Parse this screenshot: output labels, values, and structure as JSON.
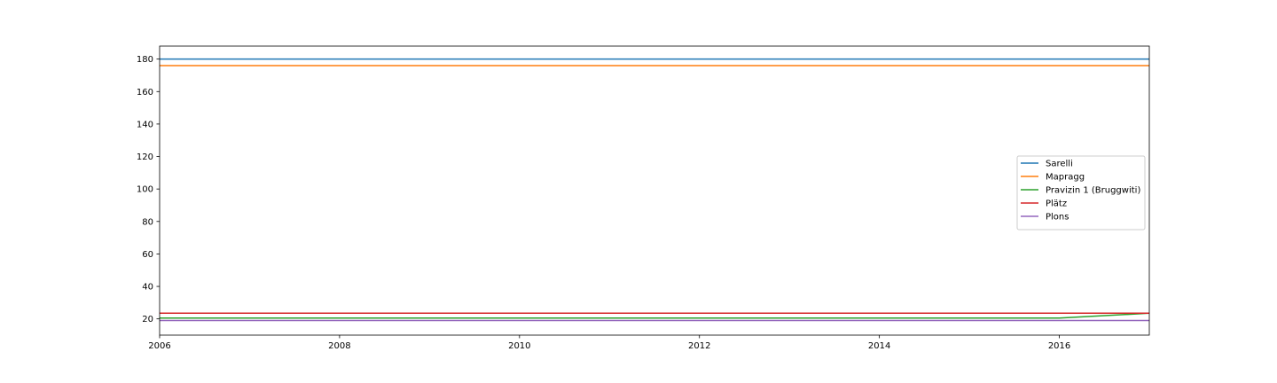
{
  "chart_data": {
    "type": "line",
    "title": "",
    "xlabel": "",
    "ylabel": "",
    "xlim": [
      2006,
      2017
    ],
    "ylim": [
      10,
      188
    ],
    "x_ticks": [
      2006,
      2008,
      2010,
      2012,
      2014,
      2016
    ],
    "y_ticks": [
      20,
      40,
      60,
      80,
      100,
      120,
      140,
      160,
      180
    ],
    "grid": false,
    "legend_position": "center-right",
    "series": [
      {
        "name": "Sarelli",
        "color": "#1f77b4",
        "points": [
          [
            2006,
            180
          ],
          [
            2017,
            180
          ]
        ]
      },
      {
        "name": "Mapragg",
        "color": "#ff7f0e",
        "points": [
          [
            2006,
            176
          ],
          [
            2017,
            176
          ]
        ]
      },
      {
        "name": "Pravizin 1 (Bruggwiti)",
        "color": "#2ca02c",
        "points": [
          [
            2006,
            20.5
          ],
          [
            2016,
            20.5
          ],
          [
            2017,
            23.5
          ]
        ]
      },
      {
        "name": "Plätz",
        "color": "#d62728",
        "points": [
          [
            2006,
            23.5
          ],
          [
            2017,
            23.5
          ]
        ]
      },
      {
        "name": "Plons",
        "color": "#9467bd",
        "points": [
          [
            2006,
            19
          ],
          [
            2017,
            19
          ]
        ]
      }
    ]
  }
}
